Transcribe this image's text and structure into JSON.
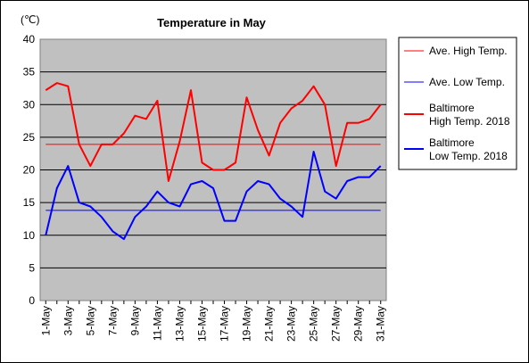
{
  "chart_data": {
    "type": "line",
    "title": "Temperature in May",
    "unit_label": "(℃)",
    "ylim": [
      0,
      40
    ],
    "yticks": [
      0,
      5,
      10,
      15,
      20,
      25,
      30,
      35,
      40
    ],
    "grid": "horizontal lines every 5",
    "legend_position": "right",
    "x": [
      "1-May",
      "2-May",
      "3-May",
      "4-May",
      "5-May",
      "6-May",
      "7-May",
      "8-May",
      "9-May",
      "10-May",
      "11-May",
      "12-May",
      "13-May",
      "14-May",
      "15-May",
      "16-May",
      "17-May",
      "18-May",
      "19-May",
      "20-May",
      "21-May",
      "22-May",
      "23-May",
      "24-May",
      "25-May",
      "26-May",
      "27-May",
      "28-May",
      "29-May",
      "30-May",
      "31-May"
    ],
    "xtick_labels": [
      "1-May",
      "3-May",
      "5-May",
      "7-May",
      "9-May",
      "11-May",
      "13-May",
      "15-May",
      "17-May",
      "19-May",
      "21-May",
      "23-May",
      "25-May",
      "27-May",
      "29-May",
      "31-May"
    ],
    "series": [
      {
        "name": "Ave. High Temp.",
        "legend_lines": [
          "Ave. High Temp."
        ],
        "color": "#ff0000",
        "width": 1,
        "values": [
          23.9,
          23.9,
          23.9,
          23.9,
          23.9,
          23.9,
          23.9,
          23.9,
          23.9,
          23.9,
          23.9,
          23.9,
          23.9,
          23.9,
          23.9,
          23.9,
          23.9,
          23.9,
          23.9,
          23.9,
          23.9,
          23.9,
          23.9,
          23.9,
          23.9,
          23.9,
          23.9,
          23.9,
          23.9,
          23.9,
          23.9
        ]
      },
      {
        "name": "Ave. Low Temp.",
        "legend_lines": [
          "Ave. Low Temp."
        ],
        "color": "#0000ff",
        "width": 1,
        "values": [
          13.8,
          13.8,
          13.8,
          13.8,
          13.8,
          13.8,
          13.8,
          13.8,
          13.8,
          13.8,
          13.8,
          13.8,
          13.8,
          13.8,
          13.8,
          13.8,
          13.8,
          13.8,
          13.8,
          13.8,
          13.8,
          13.8,
          13.8,
          13.8,
          13.8,
          13.8,
          13.8,
          13.8,
          13.8,
          13.8,
          13.8
        ]
      },
      {
        "name": "Baltimore High Temp. 2018",
        "legend_lines": [
          "Baltimore",
          "High Temp. 2018"
        ],
        "color": "#ff0000",
        "width": 2,
        "values": [
          32.2,
          33.3,
          32.8,
          23.9,
          20.6,
          23.9,
          23.9,
          25.6,
          28.3,
          27.8,
          30.6,
          18.3,
          24.4,
          32.2,
          21.1,
          20.0,
          20.0,
          21.1,
          31.1,
          26.1,
          22.2,
          27.2,
          29.4,
          30.6,
          32.8,
          30.0,
          20.6,
          27.2,
          27.2,
          27.8,
          30.0
        ]
      },
      {
        "name": "Baltimore Low Temp. 2018",
        "legend_lines": [
          "Baltimore",
          "Low Temp. 2018"
        ],
        "color": "#0000ff",
        "width": 2,
        "values": [
          10.0,
          17.2,
          20.6,
          15.0,
          14.4,
          12.8,
          10.6,
          9.4,
          12.8,
          14.4,
          16.7,
          15.0,
          14.4,
          17.8,
          18.3,
          17.2,
          12.2,
          12.2,
          16.7,
          18.3,
          17.8,
          15.6,
          14.4,
          12.8,
          22.8,
          16.7,
          15.6,
          18.3,
          18.9,
          18.9,
          20.6
        ]
      }
    ]
  }
}
